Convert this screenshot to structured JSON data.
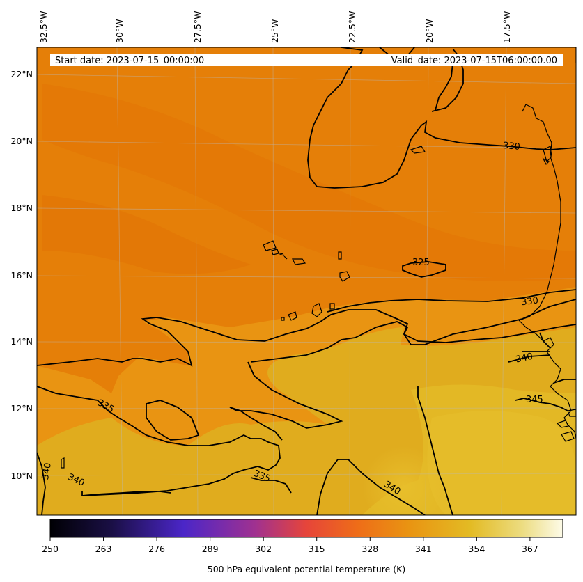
{
  "header": {
    "start_date": "Start date: 2023-07-15_00:00:00",
    "valid_date": "Valid_date: 2023-07-15T06:00:00.00"
  },
  "map": {
    "lon_labels": [
      "32.5°W",
      "30°W",
      "27.5°W",
      "25°W",
      "22.5°W",
      "20°W",
      "17.5°W"
    ],
    "lat_labels": [
      "22°N",
      "20°N",
      "18°N",
      "16°N",
      "14°N",
      "12°N",
      "10°N"
    ],
    "contour_labels": [
      "330",
      "325",
      "330",
      "340",
      "345",
      "335",
      "340",
      "335",
      "340",
      "340"
    ],
    "colors": {
      "dark_orange": "#e57f08",
      "mid_orange": "#e99412",
      "gold": "#e2b422",
      "light_gold": "#e6be2a"
    }
  },
  "colorbar": {
    "ticks": [
      "250",
      "263",
      "276",
      "289",
      "302",
      "315",
      "328",
      "341",
      "354",
      "367"
    ],
    "label": "500 hPa equivalent potential temperature (K)"
  },
  "chart_data": {
    "type": "heatmap",
    "title": "",
    "xlabel": "",
    "ylabel": "",
    "xlim": [
      "32.5°W",
      "15.5°W"
    ],
    "ylim": [
      "9°N",
      "22.7°N"
    ],
    "colorbar_range": [
      250,
      375
    ],
    "colorbar_label": "500 hPa equivalent potential temperature (K)",
    "contour_levels": [
      325,
      330,
      335,
      340,
      345
    ],
    "grid": true
  }
}
